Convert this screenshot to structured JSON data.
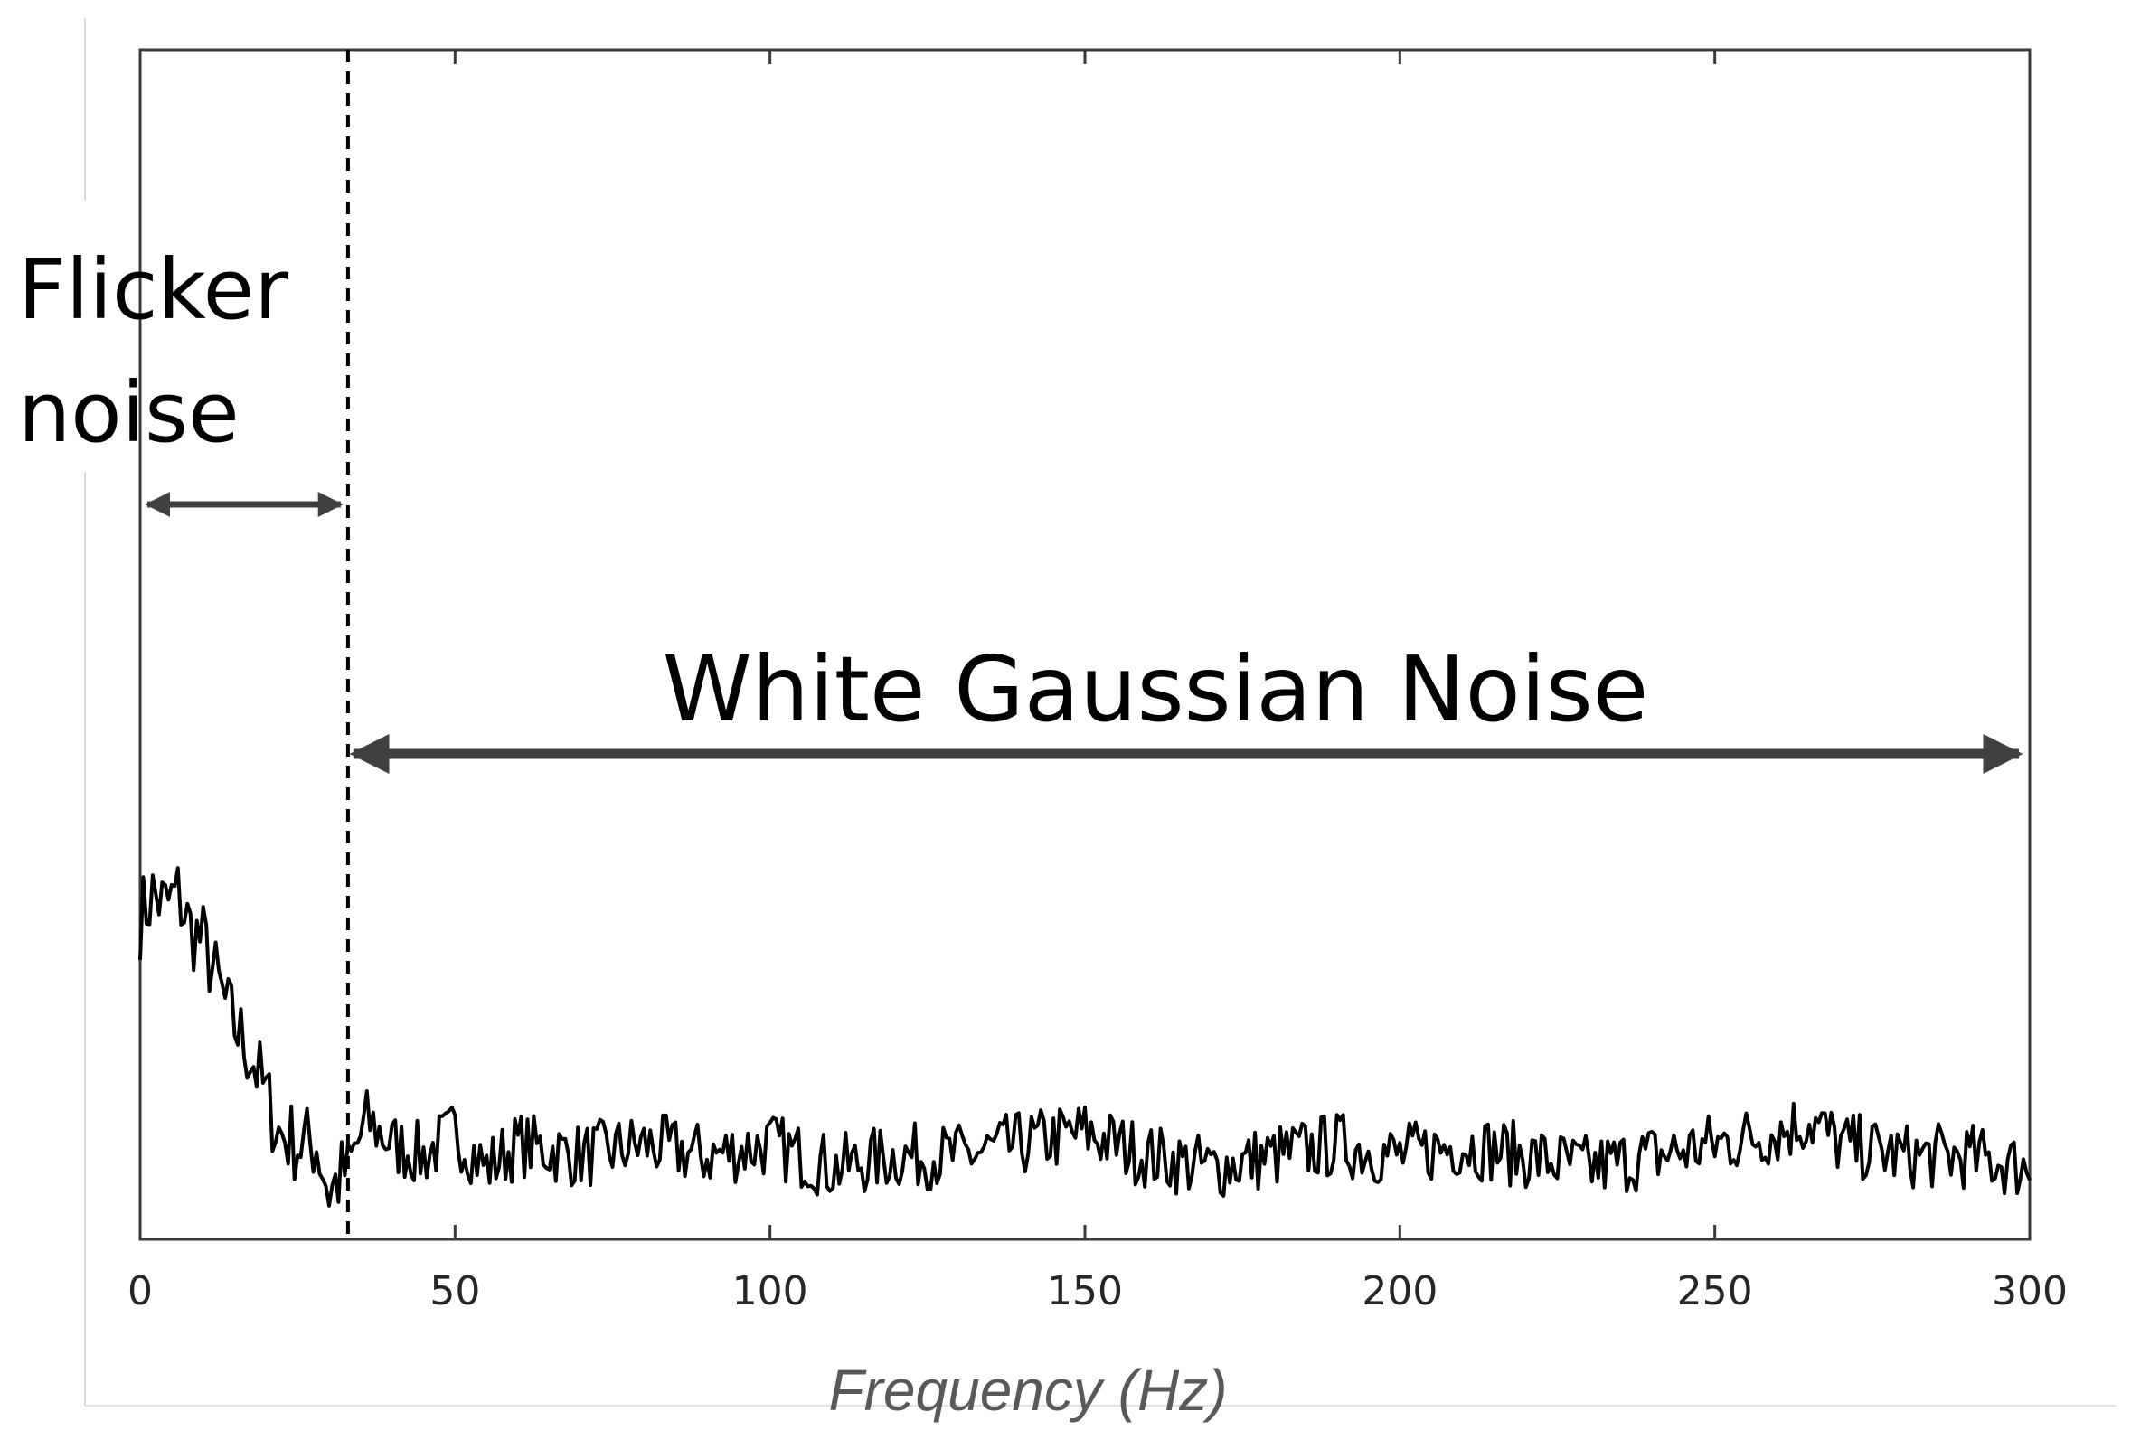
{
  "chart_data": {
    "type": "line",
    "xlabel": "Frequency (Hz)",
    "ylabel": "",
    "xlim": [
      0,
      300
    ],
    "x_ticks": [
      0,
      50,
      100,
      150,
      200,
      250,
      300
    ],
    "y_ticks_labeled": false,
    "grid": false,
    "cutoff_frequency": 33,
    "series": [
      {
        "x": [
          0,
          2,
          4,
          6,
          8,
          10,
          12,
          14,
          16,
          18,
          20,
          22,
          25,
          28,
          30,
          33,
          36,
          40,
          45,
          50,
          55,
          60,
          70,
          80,
          90,
          100,
          110,
          120,
          130,
          140,
          150,
          160,
          170,
          180,
          190,
          200,
          210,
          220,
          230,
          240,
          250,
          260,
          265,
          270,
          280,
          290,
          300
        ],
        "y": [
          0.27,
          0.29,
          0.28,
          0.29,
          0.26,
          0.25,
          0.22,
          0.19,
          0.17,
          0.15,
          0.12,
          0.09,
          0.08,
          0.08,
          0.04,
          0.06,
          0.1,
          0.08,
          0.07,
          0.09,
          0.06,
          0.08,
          0.07,
          0.08,
          0.07,
          0.08,
          0.06,
          0.07,
          0.07,
          0.08,
          0.09,
          0.07,
          0.06,
          0.07,
          0.08,
          0.07,
          0.08,
          0.07,
          0.06,
          0.07,
          0.08,
          0.09,
          0.1,
          0.08,
          0.07,
          0.07,
          0.06
        ]
      }
    ],
    "annotations": {
      "flicker": [
        "Flicker",
        "noise"
      ],
      "white": "White Gaussian Noise"
    }
  }
}
